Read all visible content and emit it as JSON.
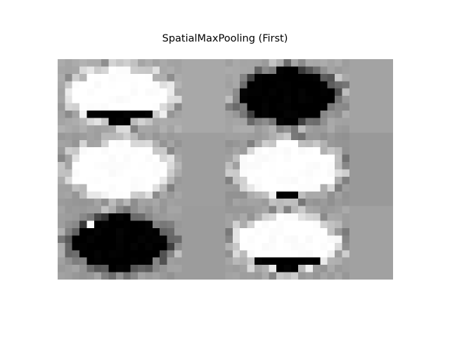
{
  "figure": {
    "title": "SpatialMaxPooling (First)"
  },
  "image": {
    "kind": "grayscale feature-map mosaic",
    "grid_columns": 2,
    "grid_rows": 3,
    "colormap": "gray",
    "background_level": 0.62,
    "tiles": [
      {
        "row": 0,
        "col": 0,
        "pattern": "white ellipse with black lower band"
      },
      {
        "row": 0,
        "col": 1,
        "pattern": "black ellipse"
      },
      {
        "row": 1,
        "col": 0,
        "pattern": "white ellipse"
      },
      {
        "row": 1,
        "col": 1,
        "pattern": "white ellipse with thin black lower band"
      },
      {
        "row": 2,
        "col": 0,
        "pattern": "black ellipse with small white patch"
      },
      {
        "row": 2,
        "col": 1,
        "pattern": "white ellipse with black lower band"
      }
    ]
  }
}
